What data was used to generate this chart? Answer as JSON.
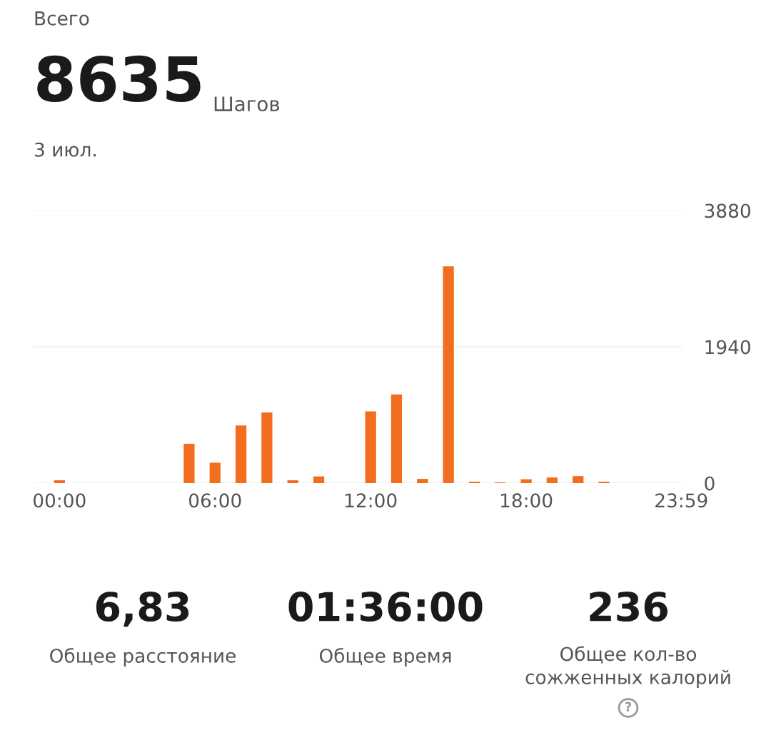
{
  "chart_data": {
    "type": "bar",
    "title": "Всего",
    "subtitle": "3 июл.",
    "x": [
      0,
      1,
      2,
      3,
      4,
      5,
      6,
      7,
      8,
      9,
      10,
      11,
      12,
      13,
      14,
      15,
      16,
      17,
      18,
      19,
      20,
      21,
      22,
      23
    ],
    "values": [
      40,
      0,
      0,
      0,
      0,
      560,
      290,
      820,
      1005,
      40,
      95,
      0,
      1020,
      1262,
      60,
      3085,
      20,
      10,
      55,
      80,
      100,
      20,
      0,
      0
    ],
    "color": "#f26d1d",
    "xlim": [
      -1,
      24
    ],
    "xticks": [
      {
        "value": 0,
        "label": "00:00"
      },
      {
        "value": 6,
        "label": "06:00"
      },
      {
        "value": 12,
        "label": "12:00"
      },
      {
        "value": 18,
        "label": "18:00"
      },
      {
        "value": 23.98,
        "label": "23:59"
      }
    ],
    "ylim": [
      0,
      3880
    ],
    "yticks": [
      0,
      1940,
      3880
    ],
    "grid": "y",
    "annotations": [
      "8635",
      "Шагов",
      "6,83",
      "Общее расстояние",
      "01:36:00",
      "Общее время",
      "236",
      "Общее кол-во\nсожженных калорий",
      "?"
    ]
  }
}
